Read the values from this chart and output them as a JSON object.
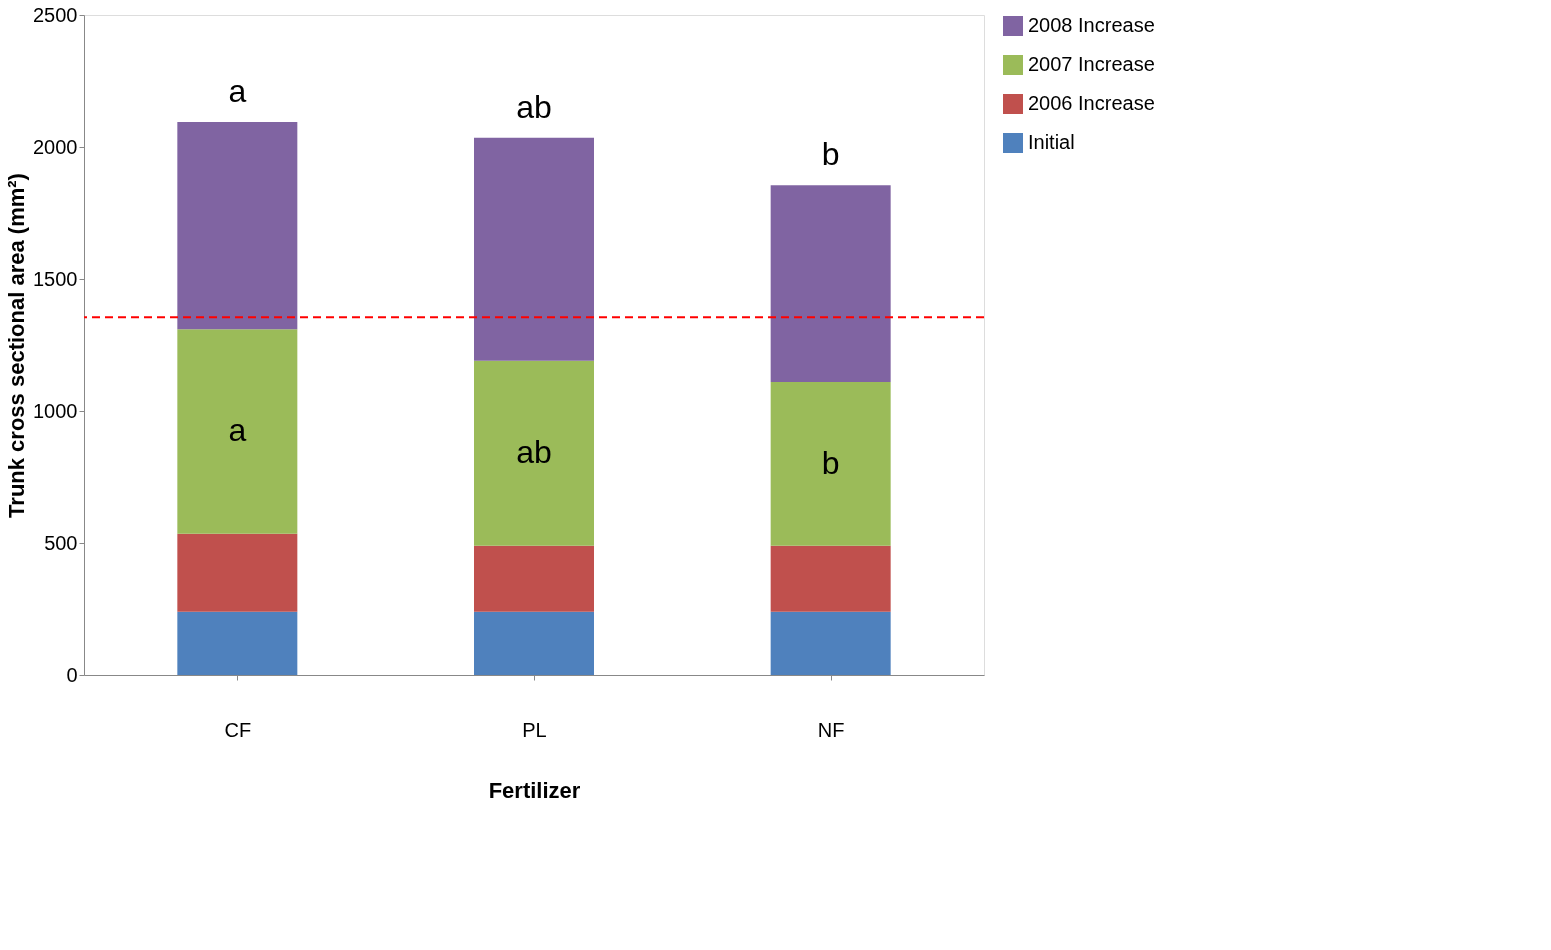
{
  "chart_data": {
    "type": "bar",
    "stacked": true,
    "xlabel": "Fertilizer",
    "ylabel": "Trunk cross sectional area (mm²)",
    "categories": [
      "CF",
      "PL",
      "NF"
    ],
    "series": [
      {
        "name": "Initial",
        "color": "#4f81bd",
        "values": [
          240,
          240,
          240
        ]
      },
      {
        "name": "2006 Increase",
        "color": "#c0504d",
        "values": [
          295,
          250,
          250
        ]
      },
      {
        "name": "2007 Increase",
        "color": "#9bbb59",
        "values": [
          775,
          700,
          620
        ]
      },
      {
        "name": "2008 Increase",
        "color": "#8064a2",
        "values": [
          785,
          845,
          745
        ]
      }
    ],
    "ylim": [
      0,
      2500
    ],
    "yticks": [
      0,
      500,
      1000,
      1500,
      2000,
      2500
    ],
    "legend": "right",
    "ref_lines": [
      {
        "axis": "y",
        "value": 1355,
        "color": "#ff0000",
        "line_style": "dashed"
      }
    ],
    "annotations": [
      "a",
      "ab",
      "b",
      "a",
      "ab",
      "b"
    ]
  }
}
